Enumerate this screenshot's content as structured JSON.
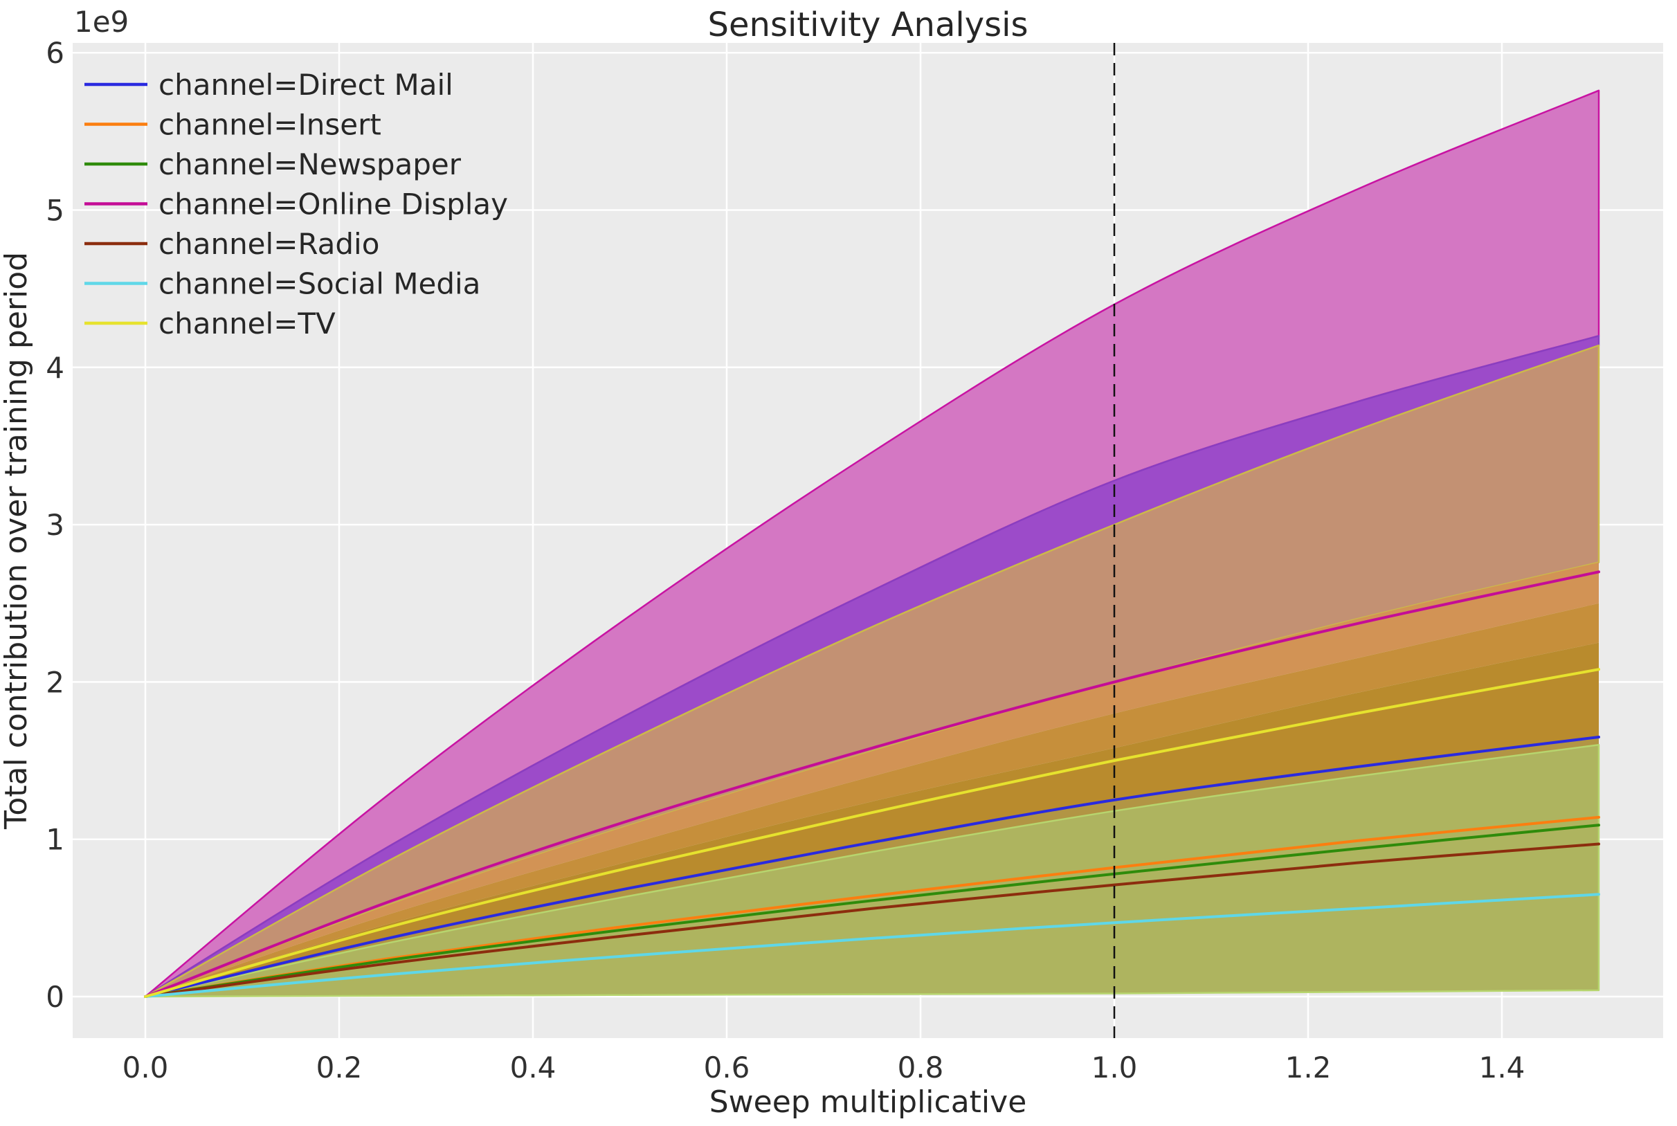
{
  "figure": {
    "title": "Sensitivity Analysis",
    "offset_text": "1e9",
    "background": "#ffffff",
    "axes_background": "#ebebeb",
    "grid_color": "#ffffff"
  },
  "chart_data": {
    "type": "line",
    "title": "Sensitivity Analysis",
    "xlabel": "Sweep multiplicative",
    "ylabel": "Total contribution over training period",
    "y_offset_factor": "1e9",
    "grid": true,
    "legend_position": "upper left",
    "xlim": [
      -0.075,
      1.566
    ],
    "ylim": [
      -0.26,
      6.06
    ],
    "xticks": {
      "labels": [
        "0.0",
        "0.2",
        "0.4",
        "0.6",
        "0.8",
        "1.0",
        "1.2",
        "1.4"
      ],
      "values": [
        0.0,
        0.2,
        0.4,
        0.6,
        0.8,
        1.0,
        1.2,
        1.4
      ]
    },
    "yticks": {
      "labels": [
        "0",
        "1",
        "2",
        "3",
        "4",
        "5",
        "6"
      ],
      "values": [
        0,
        1,
        2,
        3,
        4,
        5,
        6
      ]
    },
    "reference_vline_x": 1.0,
    "x": [
      0,
      0.25,
      0.5,
      0.75,
      1.0,
      1.25,
      1.5
    ],
    "series": [
      {
        "name": "channel=Direct Mail",
        "color": "#2a2adf",
        "values": [
          0,
          0.37,
          0.69,
          0.98,
          1.25,
          1.46,
          1.65
        ]
      },
      {
        "name": "channel=Insert",
        "color": "#fb7e10",
        "values": [
          0,
          0.24,
          0.45,
          0.64,
          0.82,
          0.99,
          1.14
        ]
      },
      {
        "name": "channel=Newspaper",
        "color": "#2f8b0b",
        "values": [
          0,
          0.23,
          0.43,
          0.61,
          0.78,
          0.94,
          1.09
        ]
      },
      {
        "name": "channel=Online Display",
        "color": "#c40d96",
        "values": [
          0,
          0.6,
          1.12,
          1.58,
          2.0,
          2.37,
          2.7
        ]
      },
      {
        "name": "channel=Radio",
        "color": "#8c2d0e",
        "values": [
          0,
          0.21,
          0.39,
          0.56,
          0.71,
          0.85,
          0.97
        ]
      },
      {
        "name": "channel=Social Media",
        "color": "#5fd7e8",
        "values": [
          0,
          0.14,
          0.26,
          0.37,
          0.47,
          0.56,
          0.65
        ]
      },
      {
        "name": "channel=TV",
        "color": "#e6e22e",
        "values": [
          0,
          0.44,
          0.82,
          1.17,
          1.5,
          1.8,
          2.08
        ]
      }
    ],
    "uncertainty_regions": [
      {
        "name": "online-display-band-upper",
        "fill": "#d477c3",
        "stroke": "#c813a2",
        "top": [
          0,
          1.28,
          2.42,
          3.46,
          4.4,
          5.13,
          5.76
        ],
        "bottom": [
          0,
          0.95,
          1.8,
          2.58,
          3.28,
          3.78,
          4.2
        ]
      },
      {
        "name": "direct-mail-band-upper",
        "fill": "#9c4bc9",
        "stroke": "#8a3ec0",
        "top": [
          0,
          0.95,
          1.8,
          2.58,
          3.28,
          3.78,
          4.2
        ],
        "bottom": [
          0,
          0.86,
          1.63,
          2.35,
          3.0,
          3.6,
          4.14
        ]
      },
      {
        "name": "tv-band-upper-tan-overlap",
        "fill": "#c39173",
        "stroke": "#ccb94a",
        "top": [
          0,
          0.86,
          1.63,
          2.35,
          3.0,
          3.6,
          4.14
        ],
        "bottom": [
          0,
          0.58,
          1.09,
          1.56,
          2.0,
          2.4,
          2.76
        ]
      },
      {
        "name": "insert-band-orange-overlap",
        "fill": "#d29355",
        "stroke": "none",
        "top": [
          0,
          0.58,
          1.09,
          1.56,
          2.0,
          2.4,
          2.76
        ],
        "bottom": [
          0,
          0.52,
          0.97,
          1.4,
          1.8,
          2.15,
          2.5
        ]
      },
      {
        "name": "gold-overlap",
        "fill": "#c68f3b",
        "stroke": "none",
        "top": [
          0,
          0.52,
          0.97,
          1.4,
          1.8,
          2.15,
          2.5
        ],
        "bottom": [
          0,
          0.46,
          0.86,
          1.24,
          1.58,
          1.93,
          2.25
        ]
      },
      {
        "name": "dark-gold-overlap",
        "fill": "#b98b2d",
        "stroke": "none",
        "top": [
          0,
          0.46,
          0.86,
          1.24,
          1.58,
          1.93,
          2.25
        ],
        "bottom": [
          0,
          0.37,
          0.69,
          0.98,
          1.25,
          1.46,
          1.65
        ]
      },
      {
        "name": "gold-olive-transition",
        "fill": "#b29544",
        "stroke": "none",
        "top": [
          0,
          0.37,
          0.69,
          0.98,
          1.25,
          1.46,
          1.65
        ],
        "bottom": [
          0,
          0.34,
          0.64,
          0.92,
          1.18,
          1.4,
          1.6
        ]
      },
      {
        "name": "olive-overlap-lower",
        "fill": "#aeb45f",
        "stroke": "#b7d56e",
        "top": [
          0,
          0.34,
          0.64,
          0.92,
          1.18,
          1.4,
          1.6
        ],
        "bottom": [
          0,
          0.005,
          0.01,
          0.015,
          0.02,
          0.03,
          0.04
        ]
      }
    ]
  }
}
